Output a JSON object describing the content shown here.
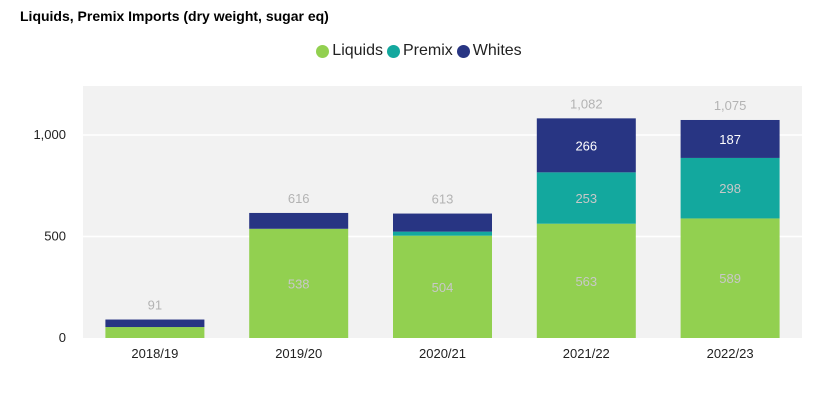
{
  "chart_data": {
    "type": "bar",
    "stacked": true,
    "title": "Liquids, Premix Imports (dry weight, sugar eq)",
    "categories": [
      "2018/19",
      "2019/20",
      "2020/21",
      "2021/22",
      "2022/23"
    ],
    "series": [
      {
        "name": "Liquids",
        "color": "#92d050",
        "values": [
          54,
          538,
          504,
          563,
          589
        ],
        "labels": [
          "",
          "538",
          "504",
          "563",
          "589"
        ]
      },
      {
        "name": "Premix",
        "color": "#13a89e",
        "values": [
          0,
          0,
          20,
          253,
          298
        ],
        "labels": [
          "",
          "",
          "",
          "253",
          "298"
        ]
      },
      {
        "name": "Whites",
        "color": "#283583",
        "values": [
          37,
          78,
          89,
          266,
          187
        ],
        "labels": [
          "",
          "",
          "",
          "266",
          "187"
        ]
      }
    ],
    "totals": [
      "91",
      "616",
      "613",
      "1,082",
      "1,075"
    ],
    "yticks": [
      0,
      500,
      1000
    ],
    "ytick_labels": [
      "0",
      "500",
      "1,000"
    ],
    "ylim": [
      0,
      1250
    ],
    "xlabel": "",
    "ylabel": "",
    "legend_position": "top",
    "grid": true
  }
}
